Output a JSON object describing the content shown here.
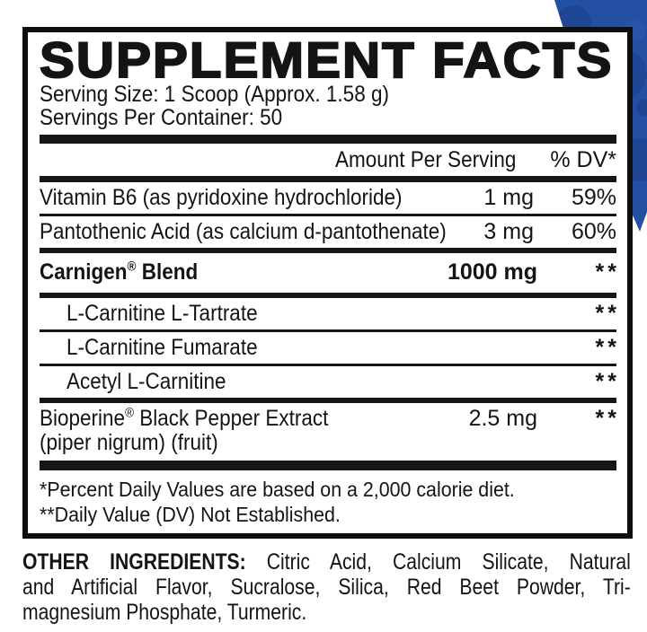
{
  "meta": {
    "accent_blue": "#2450a3",
    "accent_blue_dark": "#1a3c85",
    "accent_blue_light": "#2f5fb5",
    "rule_black": "#161616",
    "background": "#ffffff"
  },
  "supplement_facts": {
    "title": "SUPPLEMENT FACTS",
    "serving_size": "Serving Size: 1 Scoop (Approx. 1.58 g)",
    "servings_per_container": "Servings Per Container: 50",
    "columns": {
      "amount": "Amount Per Serving",
      "daily_value": "% DV*"
    },
    "rows": [
      {
        "name": "Vitamin B6 (as pyridoxine hydrochloride)",
        "amount": "1 mg",
        "dv": "59%",
        "bold": false,
        "indent": false,
        "rule_below": "thin"
      },
      {
        "name": "Pantothenic Acid (as calcium d-pantothenate)",
        "amount": "3 mg",
        "dv": "60%",
        "bold": false,
        "indent": false,
        "rule_below": "medium"
      },
      {
        "name": "Carnigen® Blend",
        "amount": "1000 mg",
        "dv": "**",
        "bold": true,
        "indent": false,
        "rule_below": "medium"
      },
      {
        "name": "L-Carnitine L-Tartrate",
        "amount": "",
        "dv": "**",
        "bold": false,
        "indent": true,
        "rule_below": "thin"
      },
      {
        "name": "L-Carnitine Fumarate",
        "amount": "",
        "dv": "**",
        "bold": false,
        "indent": true,
        "rule_below": "thin"
      },
      {
        "name": "Acetyl L-Carnitine",
        "amount": "",
        "dv": "**",
        "bold": false,
        "indent": true,
        "rule_below": "medium"
      },
      {
        "name": "Bioperine® Black Pepper Extract",
        "name_line2": "(piper nigrum) (fruit)",
        "amount": "2.5 mg",
        "dv": "**",
        "bold": false,
        "indent": false,
        "rule_below": "thick"
      }
    ],
    "footnotes": [
      "*Percent Daily Values are based on a 2,000 calorie diet.",
      "**Daily Value (DV) Not Established."
    ]
  },
  "other_ingredients": {
    "bold_label": "OTHER INGREDIENTS:",
    "lines": [
      "OTHER INGREDIENTS: Citric Acid, Calcium Silicate, Natural",
      "and Artificial Flavor, Sucralose, Silica, Red Beet Powder, Tri-",
      "magnesium Phosphate, Turmeric."
    ]
  }
}
